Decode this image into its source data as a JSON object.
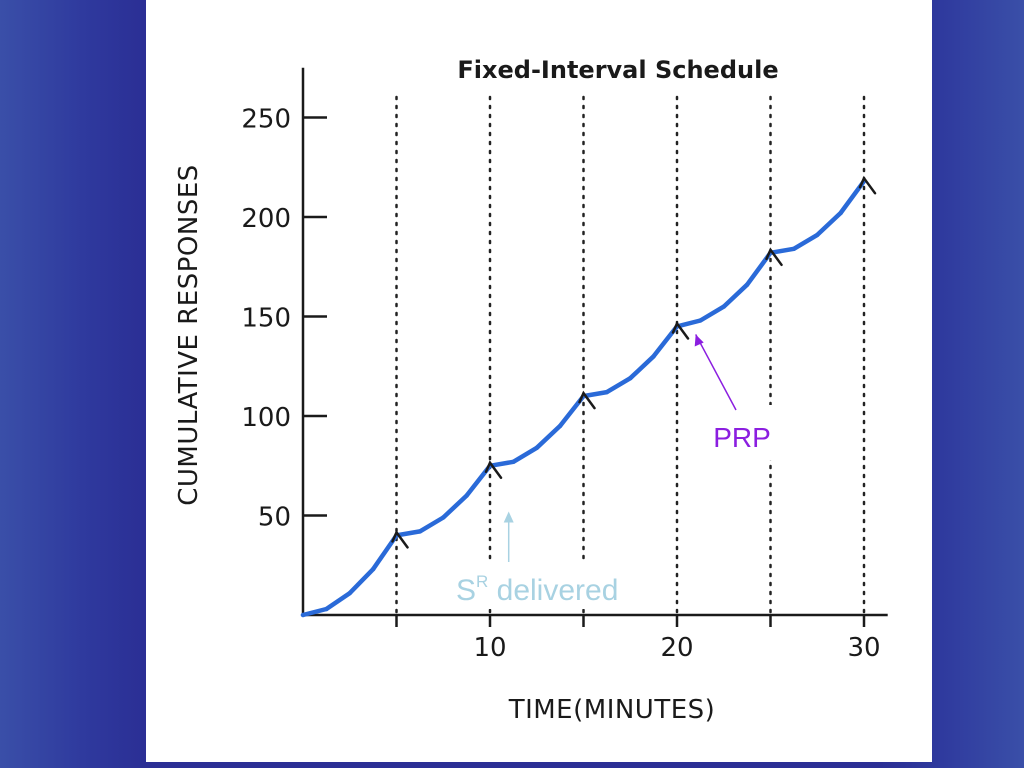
{
  "chart_data": {
    "type": "line",
    "title": "Fixed-Interval Schedule",
    "xlabel": "TIME(MINUTES)",
    "ylabel": "CUMULATIVE RESPONSES",
    "xlim": [
      0,
      31
    ],
    "ylim": [
      0,
      275
    ],
    "x_ticks": [
      10,
      20,
      30
    ],
    "y_ticks": [
      50,
      100,
      150,
      200,
      250
    ],
    "reinforcement_times": [
      5,
      10,
      15,
      20,
      25,
      30
    ],
    "series": [
      {
        "color": "#2a6ad8",
        "x": [
          0,
          1.25,
          2.5,
          3.75,
          5,
          6.25,
          7.5,
          8.75,
          10,
          11.25,
          12.5,
          13.75,
          15,
          16.25,
          17.5,
          18.75,
          20,
          21.25,
          22.5,
          23.75,
          25,
          26.25,
          27.5,
          28.75,
          30
        ],
        "y": [
          0,
          3,
          11,
          23,
          40,
          42,
          49,
          60,
          75,
          77,
          84,
          95,
          110,
          112,
          119,
          130,
          145,
          148,
          155,
          166,
          182,
          184,
          191,
          202,
          218
        ]
      }
    ],
    "annotations": [
      {
        "text": "PRP",
        "points_to_x": 21,
        "points_to_y": 145
      },
      {
        "text": "S",
        "superscript": "R",
        "suffix": " delivered",
        "points_to_x": 11,
        "points_to_y": 52
      }
    ]
  }
}
